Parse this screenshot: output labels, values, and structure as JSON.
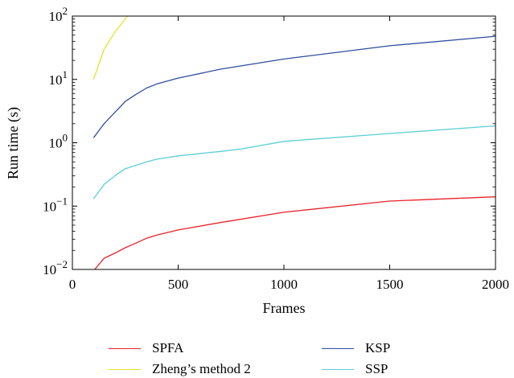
{
  "chart_data": {
    "type": "line",
    "xlabel": "Frames",
    "ylabel": "Run time (s)",
    "xlim": [
      0,
      2000
    ],
    "ylim": [
      0.01,
      100
    ],
    "y_scale": "log",
    "grid": false,
    "legend_position": "bottom",
    "x_ticks": [
      "0",
      "500",
      "1000",
      "1500",
      "2000"
    ],
    "y_ticks": [
      {
        "base": "10",
        "exp": "−2",
        "value": 0.01
      },
      {
        "base": "10",
        "exp": "−1",
        "value": 0.1
      },
      {
        "base": "10",
        "exp": "0",
        "value": 1
      },
      {
        "base": "10",
        "exp": "1",
        "value": 10
      },
      {
        "base": "10",
        "exp": "2",
        "value": 100
      }
    ],
    "series": [
      {
        "name": "SPFA",
        "color": "#e8222a",
        "x": [
          100,
          150,
          200,
          250,
          300,
          350,
          400,
          500,
          700,
          1000,
          1500,
          2000
        ],
        "y": [
          0.0095,
          0.015,
          0.018,
          0.022,
          0.026,
          0.031,
          0.035,
          0.042,
          0.055,
          0.08,
          0.12,
          0.14
        ]
      },
      {
        "name": "Zheng’s method 2",
        "color": "#e8e22a",
        "x": [
          100,
          150,
          200,
          260
        ],
        "y": [
          10,
          30,
          55,
          100
        ]
      },
      {
        "name": "KSP",
        "color": "#2f4e9b",
        "x": [
          100,
          150,
          200,
          250,
          300,
          350,
          400,
          500,
          700,
          1000,
          1500,
          2000
        ],
        "y": [
          1.2,
          2.0,
          3.0,
          4.5,
          5.8,
          7.3,
          8.5,
          10.5,
          14.5,
          21,
          34,
          48
        ]
      },
      {
        "name": "SSP",
        "color": "#5ccfd4",
        "x": [
          100,
          150,
          200,
          250,
          300,
          350,
          400,
          500,
          700,
          800,
          1000,
          1500,
          2000
        ],
        "y": [
          0.13,
          0.22,
          0.3,
          0.39,
          0.44,
          0.5,
          0.55,
          0.62,
          0.73,
          0.8,
          1.05,
          1.4,
          1.85
        ]
      }
    ]
  }
}
